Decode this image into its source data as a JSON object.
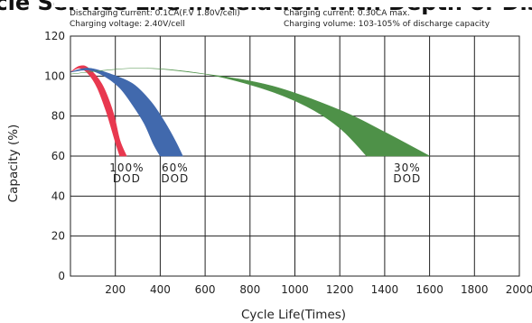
{
  "chart_data": {
    "type": "area",
    "title": "Cycle Service Life in Relation with Depth of Discharge",
    "notes": [
      "Discharging current: 0.1CA(F.V 1.80V/cell)",
      "Charging voltage: 2.40V/cell",
      "Charging current: 0.30CA max.",
      "Charging volume: 103-105% of discharge capacity"
    ],
    "xlabel": "Cycle Life(Times)",
    "ylabel": "Capacity (%)",
    "xlim": [
      0,
      2000
    ],
    "ylim": [
      0,
      120
    ],
    "xticks": [
      200,
      400,
      600,
      800,
      1000,
      1200,
      1400,
      1600,
      1800,
      2000
    ],
    "yticks": [
      0,
      20,
      40,
      60,
      80,
      100,
      120
    ],
    "grid": true,
    "series": [
      {
        "label": [
          "100%",
          "DOD"
        ],
        "color": "#e8384f",
        "upper": [
          [
            0,
            102
          ],
          [
            40,
            105
          ],
          [
            80,
            104
          ],
          [
            140,
            96
          ],
          [
            190,
            82
          ],
          [
            220,
            68
          ],
          [
            250,
            60
          ]
        ],
        "lower": [
          [
            0,
            102
          ],
          [
            40,
            104
          ],
          [
            80,
            101
          ],
          [
            120,
            94
          ],
          [
            160,
            82
          ],
          [
            200,
            67
          ],
          [
            220,
            60
          ]
        ]
      },
      {
        "label": [
          "60%",
          "DOD"
        ],
        "color": "#4169ad",
        "upper": [
          [
            0,
            102
          ],
          [
            80,
            104
          ],
          [
            180,
            101
          ],
          [
            280,
            96
          ],
          [
            360,
            87
          ],
          [
            420,
            77
          ],
          [
            470,
            67
          ],
          [
            500,
            60
          ]
        ],
        "lower": [
          [
            0,
            102
          ],
          [
            80,
            103
          ],
          [
            150,
            100
          ],
          [
            220,
            94
          ],
          [
            280,
            85
          ],
          [
            330,
            76
          ],
          [
            370,
            66
          ],
          [
            400,
            60
          ]
        ]
      },
      {
        "label": [
          "30%",
          "DOD"
        ],
        "color": "#4e9148",
        "upper": [
          [
            0,
            101
          ],
          [
            300,
            104
          ],
          [
            600,
            101
          ],
          [
            900,
            95
          ],
          [
            1200,
            83
          ],
          [
            1400,
            72
          ],
          [
            1600,
            60
          ]
        ],
        "lower": [
          [
            0,
            101
          ],
          [
            300,
            104
          ],
          [
            600,
            101
          ],
          [
            850,
            94
          ],
          [
            1050,
            85
          ],
          [
            1200,
            74
          ],
          [
            1320,
            60
          ]
        ]
      }
    ]
  }
}
